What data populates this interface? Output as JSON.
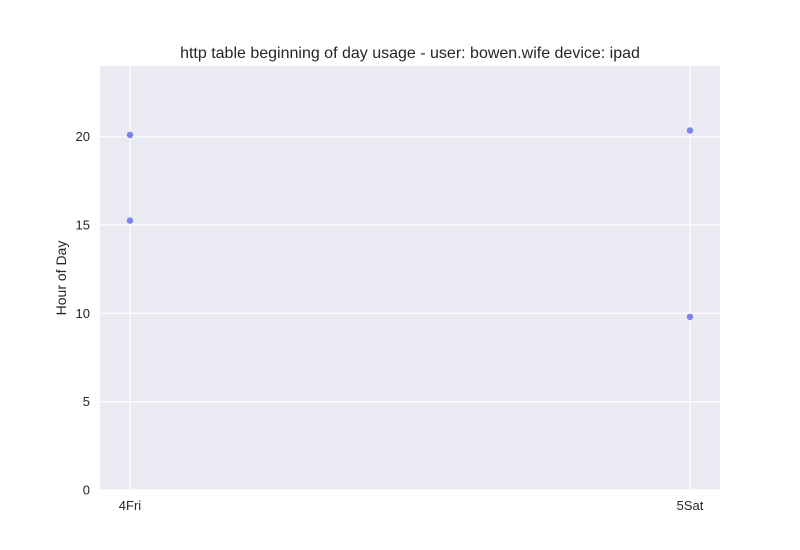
{
  "chart_data": {
    "type": "scatter",
    "title": "http table beginning of day usage -  user: bowen.wife device: ipad",
    "xlabel": "",
    "ylabel": "Hour of Day",
    "categories": [
      "4Fri",
      "5Sat"
    ],
    "points": [
      {
        "x": "4Fri",
        "y": 20.1
      },
      {
        "x": "4Fri",
        "y": 15.25
      },
      {
        "x": "5Sat",
        "y": 20.35
      },
      {
        "x": "5Sat",
        "y": 9.8
      }
    ],
    "yticks": [
      0,
      5,
      10,
      15,
      20
    ],
    "ylim": [
      0,
      24
    ],
    "grid": true,
    "legend": "none",
    "colors": {
      "background": "#eaeaf2",
      "grid": "#ffffff",
      "point": "#6b78e8"
    }
  }
}
